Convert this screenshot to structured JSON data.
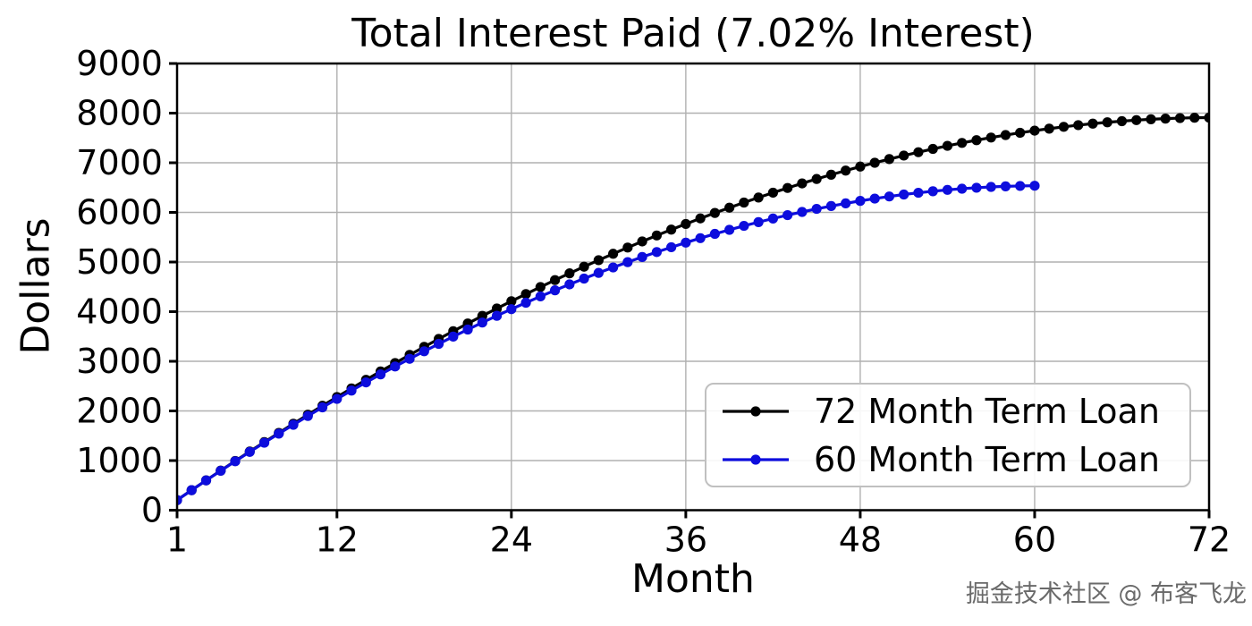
{
  "watermark": {
    "text": "掘金技术社区 @ 布客飞龙"
  },
  "chart_data": {
    "type": "line",
    "title": "Total Interest Paid (7.02% Interest)",
    "xlabel": "Month",
    "ylabel": "Dollars",
    "xlim": [
      1,
      72
    ],
    "ylim": [
      0,
      9000
    ],
    "xticks": [
      1,
      12,
      24,
      36,
      48,
      60,
      72
    ],
    "yticks": [
      0,
      1000,
      2000,
      3000,
      4000,
      5000,
      6000,
      7000,
      8000,
      9000
    ],
    "grid": true,
    "grid_color": "#b0b0b0",
    "legend_position": "inside center-right",
    "marker": "circle",
    "series": [
      {
        "name": "72 Month Term Loan",
        "color": "#000000",
        "x_start": 1,
        "x_step": 1,
        "values": [
          203,
          403,
          601,
          797,
          991,
          1182,
          1371,
          1557,
          1742,
          1924,
          2103,
          2280,
          2454,
          2627,
          2796,
          2964,
          3128,
          3291,
          3450,
          3607,
          3762,
          3914,
          4064,
          4211,
          4355,
          4497,
          4636,
          4772,
          4906,
          5037,
          5166,
          5292,
          5415,
          5535,
          5653,
          5767,
          5879,
          5989,
          6095,
          6198,
          6299,
          6397,
          6492,
          6584,
          6673,
          6759,
          6842,
          6923,
          7000,
          7074,
          7145,
          7213,
          7279,
          7341,
          7400,
          7455,
          7508,
          7558,
          7604,
          7647,
          7687,
          7724,
          7758,
          7788,
          7815,
          7838,
          7859,
          7876,
          7889,
          7900,
          7907,
          7910
        ]
      },
      {
        "name": "60 Month Term Loan",
        "color": "#0d0ddd",
        "x_start": 1,
        "x_step": 1,
        "values": [
          203,
          403,
          600,
          794,
          985,
          1174,
          1359,
          1542,
          1721,
          1898,
          2072,
          2242,
          2410,
          2575,
          2736,
          2895,
          3050,
          3202,
          3351,
          3498,
          3640,
          3780,
          3917,
          4050,
          4180,
          4307,
          4430,
          4550,
          4667,
          4781,
          4891,
          4998,
          5101,
          5201,
          5298,
          5391,
          5481,
          5567,
          5649,
          5729,
          5804,
          5876,
          5945,
          6009,
          6071,
          6128,
          6182,
          6232,
          6278,
          6321,
          6360,
          6395,
          6426,
          6454,
          6477,
          6497,
          6513,
          6525,
          6533,
          6537
        ]
      }
    ]
  }
}
